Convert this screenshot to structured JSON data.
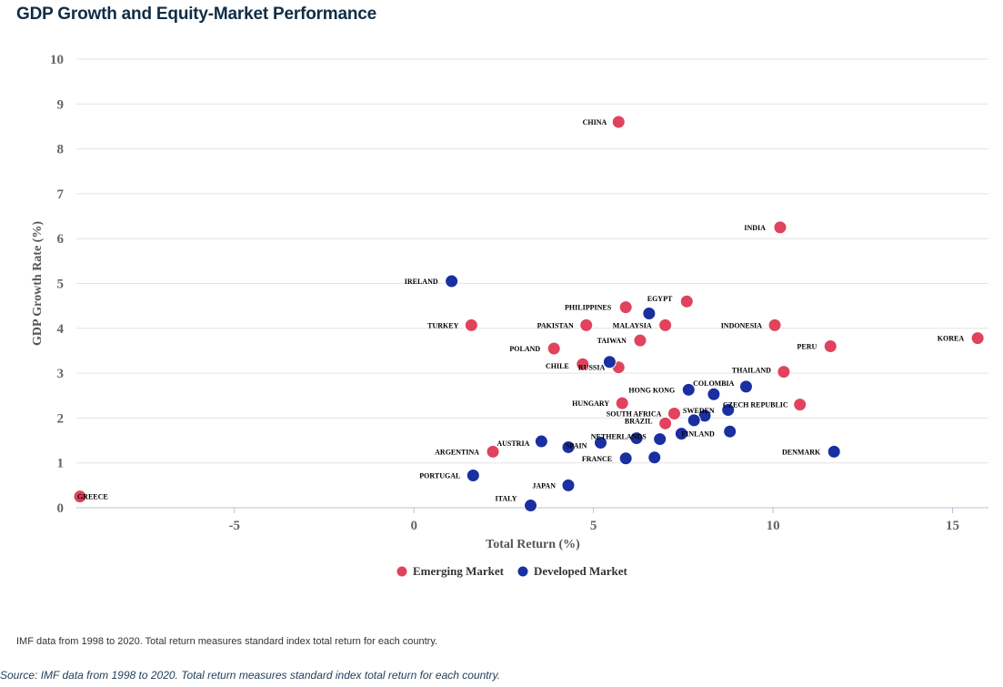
{
  "title": "GDP Growth and Equity-Market Performance",
  "note": "IMF data from 1998 to 2020. Total return measures standard index total return for each country.",
  "source": "Source: IMF data from 1998 to 2020. Total return measures standard index total return for each country.",
  "colors": {
    "emerging": "#e0435d",
    "developed": "#1a2fa0",
    "grid": "#e3e3e3"
  },
  "chart_data": {
    "type": "scatter",
    "title": "GDP Growth and Equity-Market Performance",
    "xlabel": "Total Return (%)",
    "ylabel": "GDP Growth Rate (%)",
    "xlim": [
      -9.4,
      16
    ],
    "ylim": [
      0,
      10
    ],
    "xticks": [
      -5,
      0,
      5,
      10,
      15
    ],
    "yticks": [
      0,
      1,
      2,
      3,
      4,
      5,
      6,
      7,
      8,
      9,
      10
    ],
    "grid": "horizontal",
    "legend": "bottom-center",
    "series": [
      {
        "name": "Emerging Market",
        "points": [
          {
            "label": "CHINA",
            "x": 5.7,
            "y": 8.6
          },
          {
            "label": "INDIA",
            "x": 10.2,
            "y": 6.25
          },
          {
            "label": "EGYPT",
            "x": 7.6,
            "y": 4.6
          },
          {
            "label": "PHILIPPINES",
            "x": 5.9,
            "y": 4.47
          },
          {
            "label": "TURKEY",
            "x": 1.6,
            "y": 4.07
          },
          {
            "label": "PAKISTAN",
            "x": 4.8,
            "y": 4.07
          },
          {
            "label": "MALAYSIA",
            "x": 7.0,
            "y": 4.07
          },
          {
            "label": "INDONESIA",
            "x": 10.05,
            "y": 4.07
          },
          {
            "label": "KOREA",
            "x": 15.7,
            "y": 3.78
          },
          {
            "label": "TAIWAN",
            "x": 6.3,
            "y": 3.73
          },
          {
            "label": "PERU",
            "x": 11.6,
            "y": 3.6
          },
          {
            "label": "POLAND",
            "x": 3.9,
            "y": 3.55
          },
          {
            "label": "CHILE",
            "x": 4.7,
            "y": 3.2
          },
          {
            "label": "RUSSIA",
            "x": 5.7,
            "y": 3.13
          },
          {
            "label": "THAILAND",
            "x": 10.3,
            "y": 3.03
          },
          {
            "label": "HUNGARY",
            "x": 5.8,
            "y": 2.33
          },
          {
            "label": "CZECH REPUBLIC",
            "x": 10.75,
            "y": 2.3
          },
          {
            "label": "SOUTH AFRICA",
            "x": 7.25,
            "y": 2.1
          },
          {
            "label": "BRAZIL",
            "x": 7.0,
            "y": 1.88
          },
          {
            "label": "ARGENTINA",
            "x": 2.2,
            "y": 1.25
          },
          {
            "label": "GREECE",
            "x": -9.3,
            "y": 0.25
          }
        ]
      },
      {
        "name": "Developed Market",
        "points": [
          {
            "label": "IRELAND",
            "x": 1.05,
            "y": 5.05
          },
          {
            "label": "",
            "x": 6.55,
            "y": 4.33
          },
          {
            "label": "",
            "x": 5.45,
            "y": 3.25
          },
          {
            "label": "COLOMBIA",
            "x": 9.25,
            "y": 2.7
          },
          {
            "label": "HONG KONG",
            "x": 7.65,
            "y": 2.63
          },
          {
            "label": "",
            "x": 8.35,
            "y": 2.53
          },
          {
            "label": "SWEDEN",
            "x": 8.1,
            "y": 2.05
          },
          {
            "label": "",
            "x": 8.75,
            "y": 2.18
          },
          {
            "label": "",
            "x": 7.8,
            "y": 1.95
          },
          {
            "label": "FINLAND",
            "x": 7.45,
            "y": 1.65
          },
          {
            "label": "",
            "x": 8.8,
            "y": 1.7
          },
          {
            "label": "NETHERLANDS",
            "x": 6.85,
            "y": 1.53
          },
          {
            "label": "",
            "x": 6.2,
            "y": 1.55
          },
          {
            "label": "",
            "x": 5.2,
            "y": 1.45
          },
          {
            "label": "SPAIN",
            "x": 4.3,
            "y": 1.35
          },
          {
            "label": "AUSTRIA",
            "x": 3.55,
            "y": 1.48
          },
          {
            "label": "DENMARK",
            "x": 11.7,
            "y": 1.25
          },
          {
            "label": "",
            "x": 6.7,
            "y": 1.12
          },
          {
            "label": "FRANCE",
            "x": 5.9,
            "y": 1.1
          },
          {
            "label": "PORTUGAL",
            "x": 1.65,
            "y": 0.72
          },
          {
            "label": "JAPAN",
            "x": 4.3,
            "y": 0.5
          },
          {
            "label": "ITALY",
            "x": 3.25,
            "y": 0.05
          }
        ]
      }
    ]
  }
}
